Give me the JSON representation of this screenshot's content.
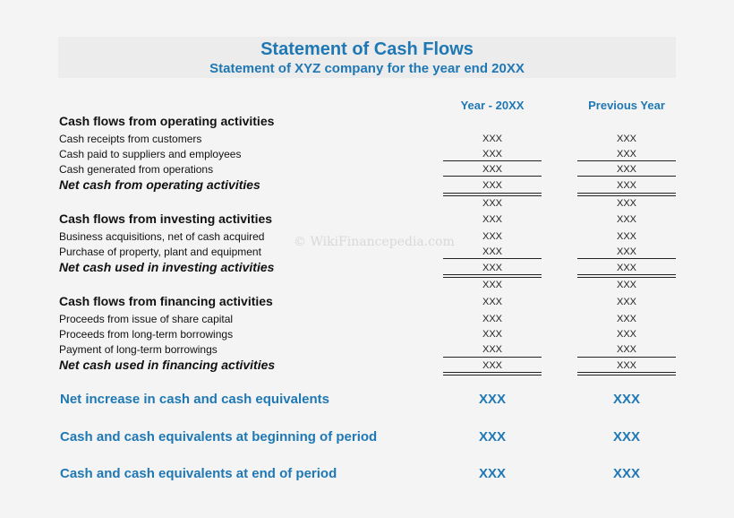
{
  "header": {
    "title": "Statement of Cash Flows",
    "subtitle": "Statement of XYZ company for the year end 20XX"
  },
  "columns": [
    "Year - 20XX",
    "Previous Year"
  ],
  "watermark": "© WikiFinancepedia.com",
  "rows": [
    {
      "label": "Cash flows from operating activities",
      "kind": "hdr",
      "values": [
        "",
        ""
      ]
    },
    {
      "label": "Cash receipts from customers",
      "kind": "item",
      "values": [
        "XXX",
        "XXX"
      ]
    },
    {
      "label": "Cash paid to suppliers and employees",
      "kind": "item",
      "values": [
        "XXX",
        "XXX"
      ]
    },
    {
      "label": "Cash generated from operations",
      "kind": "item",
      "values": [
        "XXX",
        "XXX"
      ]
    },
    {
      "label": "Net cash from operating activities",
      "kind": "total",
      "values": [
        "XXX",
        "XXX"
      ]
    },
    {
      "label": "",
      "kind": "item",
      "values": [
        "XXX",
        "XXX"
      ]
    },
    {
      "label": "Cash flows from investing activities",
      "kind": "hdr",
      "values": [
        "XXX",
        "XXX"
      ]
    },
    {
      "label": "Business acquisitions, net of cash acquired",
      "kind": "item",
      "values": [
        "XXX",
        "XXX"
      ]
    },
    {
      "label": "Purchase of property, plant and equipment",
      "kind": "item",
      "values": [
        "XXX",
        "XXX"
      ]
    },
    {
      "label": "Net cash used in investing activities",
      "kind": "total",
      "values": [
        "XXX",
        "XXX"
      ]
    },
    {
      "label": "",
      "kind": "item",
      "values": [
        "XXX",
        "XXX"
      ]
    },
    {
      "label": "Cash flows from financing activities",
      "kind": "hdr",
      "values": [
        "XXX",
        "XXX"
      ]
    },
    {
      "label": "Proceeds from issue of share capital",
      "kind": "item",
      "values": [
        "XXX",
        "XXX"
      ]
    },
    {
      "label": "Proceeds from long-term borrowings",
      "kind": "item",
      "values": [
        "XXX",
        "XXX"
      ]
    },
    {
      "label": "Payment of long-term borrowings",
      "kind": "item",
      "values": [
        "XXX",
        "XXX"
      ]
    },
    {
      "label": "Net cash used in financing activities",
      "kind": "total",
      "values": [
        "XXX",
        "XXX"
      ]
    }
  ],
  "summary": [
    {
      "label": "Net increase in cash and cash equivalents",
      "values": [
        "XXX",
        "XXX"
      ]
    },
    {
      "label": "Cash and cash equivalents at beginning of period",
      "values": [
        "XXX",
        "XXX"
      ]
    },
    {
      "label": "Cash and cash equivalents at end of period",
      "values": [
        "XXX",
        "XXX"
      ]
    }
  ]
}
